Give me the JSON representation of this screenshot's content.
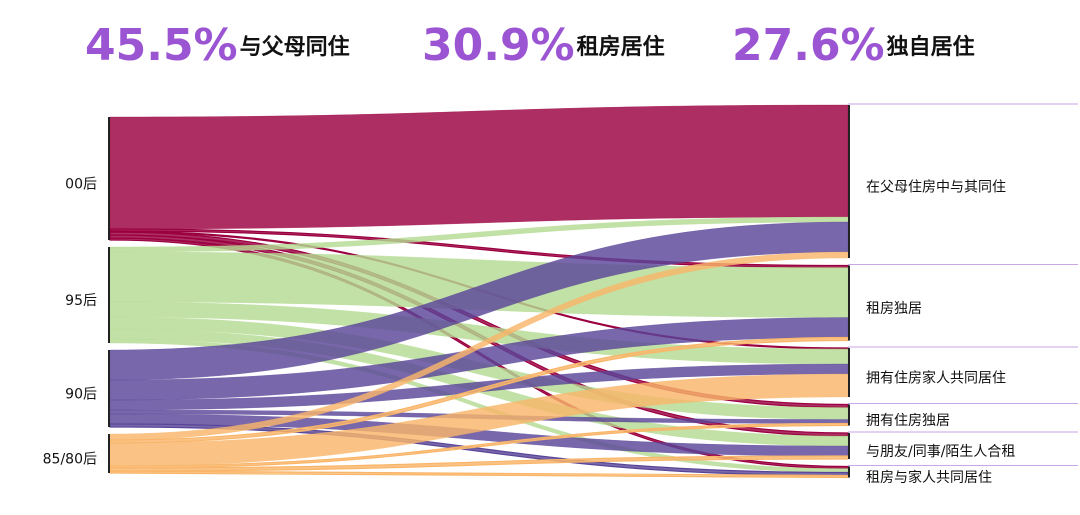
{
  "chart_data": {
    "type": "sankey",
    "stats": [
      {
        "figure": "45.5%",
        "label": "与父母同住"
      },
      {
        "figure": "30.9%",
        "label": "租房居住"
      },
      {
        "figure": "27.6%",
        "label": "独自居住"
      }
    ],
    "sources": [
      {
        "name": "00后",
        "color": "#9b0040"
      },
      {
        "name": "95后",
        "color": "#b5db92"
      },
      {
        "name": "90后",
        "color": "#5a4698"
      },
      {
        "name": "85/80后",
        "color": "#f9b66a"
      }
    ],
    "targets": [
      "在父母住房中与其同住",
      "租房独居",
      "拥有住房家人共同居住",
      "拥有住房独居",
      "与朋友/同事/陌生人合租",
      "租房与家人共同居住"
    ],
    "flows": [
      {
        "source": 0,
        "target": 0,
        "value": 112
      },
      {
        "source": 0,
        "target": 1,
        "value": 2
      },
      {
        "source": 0,
        "target": 2,
        "value": 1
      },
      {
        "source": 0,
        "target": 3,
        "value": 3
      },
      {
        "source": 0,
        "target": 4,
        "value": 3
      },
      {
        "source": 0,
        "target": 5,
        "value": 2
      },
      {
        "source": 1,
        "target": 0,
        "value": 5
      },
      {
        "source": 1,
        "target": 1,
        "value": 50
      },
      {
        "source": 1,
        "target": 2,
        "value": 15
      },
      {
        "source": 1,
        "target": 3,
        "value": 12
      },
      {
        "source": 1,
        "target": 4,
        "value": 10
      },
      {
        "source": 1,
        "target": 5,
        "value": 4
      },
      {
        "source": 2,
        "target": 0,
        "value": 30
      },
      {
        "source": 2,
        "target": 1,
        "value": 20
      },
      {
        "source": 2,
        "target": 2,
        "value": 10
      },
      {
        "source": 2,
        "target": 3,
        "value": 4
      },
      {
        "source": 2,
        "target": 4,
        "value": 10
      },
      {
        "source": 2,
        "target": 5,
        "value": 3
      },
      {
        "source": 3,
        "target": 0,
        "value": 6
      },
      {
        "source": 3,
        "target": 1,
        "value": 3
      },
      {
        "source": 3,
        "target": 2,
        "value": 23
      },
      {
        "source": 3,
        "target": 3,
        "value": 2
      },
      {
        "source": 3,
        "target": 4,
        "value": 3
      },
      {
        "source": 3,
        "target": 5,
        "value": 2
      }
    ]
  }
}
